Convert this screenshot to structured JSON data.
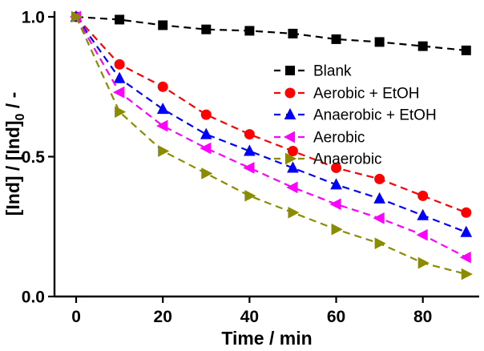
{
  "figure": {
    "background": "#ffffff"
  },
  "chart_data": {
    "type": "line",
    "title": "",
    "xlabel": "Time / min",
    "ylabel": "[Ind] / [Ind]0 / -",
    "ylabel_main": "[Ind] / [Ind]",
    "ylabel_sub": "0",
    "ylabel_tail": " / -",
    "xlim": [
      -5,
      93
    ],
    "ylim": [
      0,
      1.02
    ],
    "xticks": [
      0,
      20,
      40,
      60,
      80
    ],
    "yticks": [
      0.0,
      0.5,
      1.0
    ],
    "ytick_labels": [
      "0.0",
      "0.5",
      "1.0"
    ],
    "grid": false,
    "legend_position": "upper-right-inside",
    "line_style": "dashed",
    "x": [
      0,
      10,
      20,
      30,
      40,
      50,
      60,
      70,
      80,
      90
    ],
    "series": [
      {
        "name": "Blank",
        "color": "#000000",
        "marker": "square",
        "values": [
          1.0,
          0.99,
          0.97,
          0.955,
          0.95,
          0.94,
          0.92,
          0.91,
          0.895,
          0.88
        ]
      },
      {
        "name": "Aerobic + EtOH",
        "color": "#ff0000",
        "marker": "circle",
        "values": [
          1.0,
          0.83,
          0.75,
          0.65,
          0.58,
          0.52,
          0.46,
          0.42,
          0.36,
          0.3
        ]
      },
      {
        "name": "Anaerobic + EtOH",
        "color": "#0000ff",
        "marker": "triangle-up",
        "values": [
          1.0,
          0.78,
          0.67,
          0.58,
          0.52,
          0.46,
          0.4,
          0.35,
          0.29,
          0.23
        ]
      },
      {
        "name": "Aerobic",
        "color": "#ff00ff",
        "marker": "triangle-left",
        "values": [
          1.0,
          0.73,
          0.61,
          0.53,
          0.46,
          0.39,
          0.33,
          0.28,
          0.22,
          0.14
        ]
      },
      {
        "name": "Anaerobic",
        "color": "#8b8b00",
        "marker": "triangle-right",
        "values": [
          1.0,
          0.66,
          0.52,
          0.44,
          0.36,
          0.3,
          0.24,
          0.19,
          0.12,
          0.08
        ]
      }
    ]
  }
}
